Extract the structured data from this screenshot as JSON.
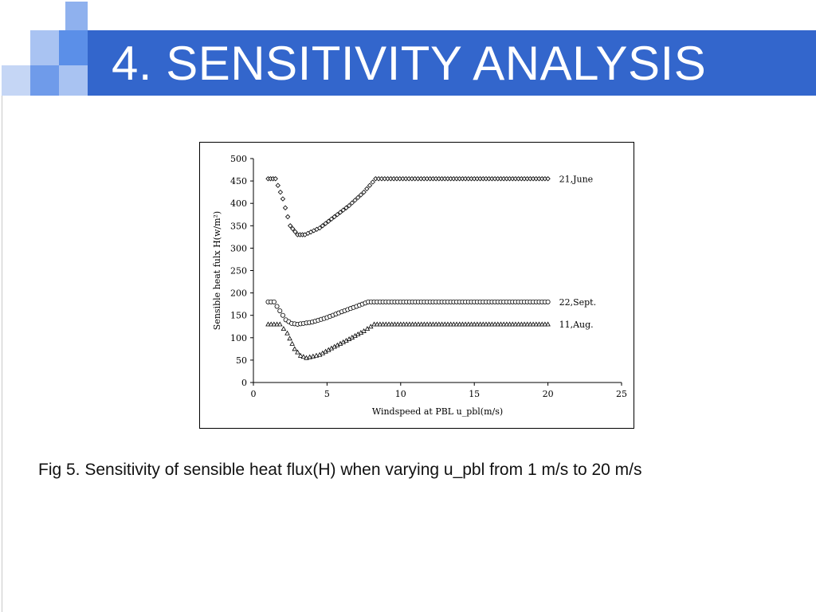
{
  "slide": {
    "title": "4. SENSITIVITY ANALYSIS",
    "caption": "Fig 5. Sensitivity of sensible heat flux(H) when varying u_pbl from 1 m/s to 20 m/s",
    "accent_color": "#3366cc",
    "accent_light_color": "#6699ee"
  },
  "chart_data": {
    "type": "scatter",
    "xlabel": "Windspeed at PBL u_pbl(m/s)",
    "ylabel": "Sensible heat fulx H(w/m²)",
    "xlim": [
      0,
      25
    ],
    "ylim": [
      0,
      500
    ],
    "xticks": [
      0,
      5,
      10,
      15,
      20,
      25
    ],
    "yticks": [
      0,
      50,
      100,
      150,
      200,
      250,
      300,
      350,
      400,
      450,
      500
    ],
    "grid": false,
    "series": [
      {
        "name": "21,June",
        "marker": "diamond",
        "points": [
          [
            1.0,
            455
          ],
          [
            1.5,
            455
          ],
          [
            2.0,
            410
          ],
          [
            2.5,
            350
          ],
          [
            3.0,
            330
          ],
          [
            3.5,
            330
          ],
          [
            4.5,
            345
          ],
          [
            5.5,
            370
          ],
          [
            6.5,
            395
          ],
          [
            7.5,
            425
          ],
          [
            8.3,
            455
          ],
          [
            12,
            455
          ],
          [
            16,
            455
          ],
          [
            20,
            455
          ]
        ]
      },
      {
        "name": "22,Sept.",
        "marker": "circle",
        "points": [
          [
            1.0,
            180
          ],
          [
            1.4,
            180
          ],
          [
            1.8,
            160
          ],
          [
            2.2,
            140
          ],
          [
            2.6,
            132
          ],
          [
            3.0,
            130
          ],
          [
            4.0,
            135
          ],
          [
            5.0,
            145
          ],
          [
            6.0,
            158
          ],
          [
            7.0,
            170
          ],
          [
            7.8,
            180
          ],
          [
            12,
            180
          ],
          [
            16,
            180
          ],
          [
            20,
            180
          ]
        ]
      },
      {
        "name": "11,Aug.",
        "marker": "triangle",
        "points": [
          [
            1.0,
            130
          ],
          [
            1.8,
            130
          ],
          [
            2.3,
            110
          ],
          [
            2.8,
            75
          ],
          [
            3.2,
            60
          ],
          [
            3.6,
            55
          ],
          [
            4.5,
            62
          ],
          [
            5.5,
            80
          ],
          [
            6.5,
            97
          ],
          [
            7.5,
            115
          ],
          [
            8.2,
            130
          ],
          [
            12,
            130
          ],
          [
            16,
            130
          ],
          [
            20,
            130
          ]
        ]
      }
    ]
  }
}
